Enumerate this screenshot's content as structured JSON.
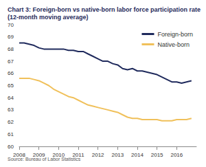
{
  "chart_data": {
    "type": "line",
    "title": "Chart 3: Foreign-born vs native-born labor force participation rate (12-month moving average)",
    "source": "Source: Bureau of Labor Statistics",
    "x": [
      2008,
      2008.25,
      2008.5,
      2008.75,
      2009,
      2009.25,
      2009.5,
      2009.75,
      2010,
      2010.25,
      2010.5,
      2010.75,
      2011,
      2011.25,
      2011.5,
      2011.75,
      2012,
      2012.25,
      2012.5,
      2012.75,
      2013,
      2013.25,
      2013.5,
      2013.75,
      2014,
      2014.25,
      2014.5,
      2014.75,
      2015,
      2015.25,
      2015.5,
      2015.75,
      2016,
      2016.25,
      2016.5,
      2016.75
    ],
    "series": [
      {
        "name": "Foreign-born",
        "color": "#1f2a5c",
        "values": [
          68.5,
          68.5,
          68.4,
          68.3,
          68.1,
          68.0,
          68.0,
          68.0,
          68.0,
          68.0,
          67.9,
          67.9,
          67.8,
          67.8,
          67.6,
          67.4,
          67.2,
          67.0,
          67.0,
          66.8,
          66.7,
          66.4,
          66.3,
          66.4,
          66.2,
          66.2,
          66.1,
          66.0,
          65.9,
          65.7,
          65.5,
          65.3,
          65.3,
          65.2,
          65.3,
          65.4
        ]
      },
      {
        "name": "Native-born",
        "color": "#f0c05a",
        "values": [
          65.6,
          65.6,
          65.6,
          65.5,
          65.4,
          65.2,
          65.0,
          64.7,
          64.5,
          64.3,
          64.1,
          64.0,
          63.8,
          63.6,
          63.4,
          63.3,
          63.2,
          63.1,
          63.0,
          62.9,
          62.8,
          62.6,
          62.4,
          62.3,
          62.3,
          62.2,
          62.2,
          62.2,
          62.2,
          62.1,
          62.1,
          62.1,
          62.2,
          62.2,
          62.2,
          62.3
        ]
      }
    ],
    "xlim": [
      2008,
      2017
    ],
    "xticks": [
      2008,
      2009,
      2010,
      2011,
      2012,
      2013,
      2014,
      2015,
      2016
    ],
    "ylim": [
      60,
      70
    ],
    "yticks": [
      60,
      61,
      62,
      63,
      64,
      65,
      66,
      67,
      68,
      69,
      70
    ],
    "grid": false,
    "legend": "upper right"
  }
}
